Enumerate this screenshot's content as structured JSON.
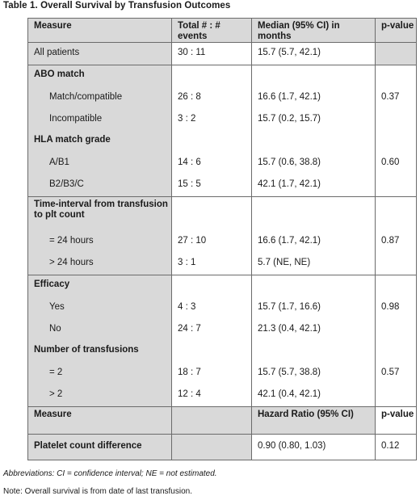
{
  "title": "Table 1.  Overall Survival by Transfusion Outcomes",
  "header": {
    "measure": "Measure",
    "total": "Total # : # events",
    "median": "Median (95% CI) in months",
    "pvalue": "p-value"
  },
  "rows": {
    "all_patients": {
      "label": "All patients",
      "total": "30 : 11",
      "median": "15.7 (5.7, 42.1)",
      "p": ""
    },
    "abo": {
      "section": "ABO match",
      "match": {
        "label": "Match/compatible",
        "total": "26 : 8",
        "median": "16.6 (1.7, 42.1)",
        "p": "0.37"
      },
      "incompatible": {
        "label": "Incompatible",
        "total": "3 : 2",
        "median": "15.7 (0.2, 15.7)",
        "p": ""
      }
    },
    "hla": {
      "section": "HLA match grade",
      "ab1": {
        "label": "A/B1",
        "total": "14 : 6",
        "median": "15.7 (0.6, 38.8)",
        "p": "0.60"
      },
      "b2": {
        "label": "B2/B3/C",
        "total": "15 : 5",
        "median": "42.1 (1.7, 42.1)",
        "p": ""
      }
    },
    "interval": {
      "section": "Time-interval from transfusion to plt count",
      "le24": {
        "label": "= 24 hours",
        "total": "27 : 10",
        "median": "16.6 (1.7, 42.1)",
        "p": "0.87"
      },
      "gt24": {
        "label": "> 24 hours",
        "total": "3 : 1",
        "median": "5.7 (NE, NE)",
        "p": ""
      }
    },
    "efficacy": {
      "section": "Efficacy",
      "yes": {
        "label": "Yes",
        "total": "4 : 3",
        "median": "15.7 (1.7, 16.6)",
        "p": "0.98"
      },
      "no": {
        "label": "No",
        "total": "24 : 7",
        "median": "21.3 (0.4, 42.1)",
        "p": ""
      }
    },
    "transfusions": {
      "section": "Number of transfusions",
      "le2": {
        "label": "= 2",
        "total": "18 : 7",
        "median": "15.7 (5.7, 38.8)",
        "p": "0.57"
      },
      "gt2": {
        "label": "> 2",
        "total": "12 : 4",
        "median": "42.1 (0.4, 42.1)",
        "p": ""
      }
    }
  },
  "header2": {
    "measure": "Measure",
    "hr": "Hazard Ratio (95% CI)",
    "pvalue": "p-value"
  },
  "platelet": {
    "label": "Platelet count difference",
    "hr": "0.90 (0.80, 1.03)",
    "p": "0.12"
  },
  "abbreviations": "Abbreviations: CI = confidence interval; NE = not estimated.",
  "note": "Note: Overall survival is from date of last transfusion."
}
